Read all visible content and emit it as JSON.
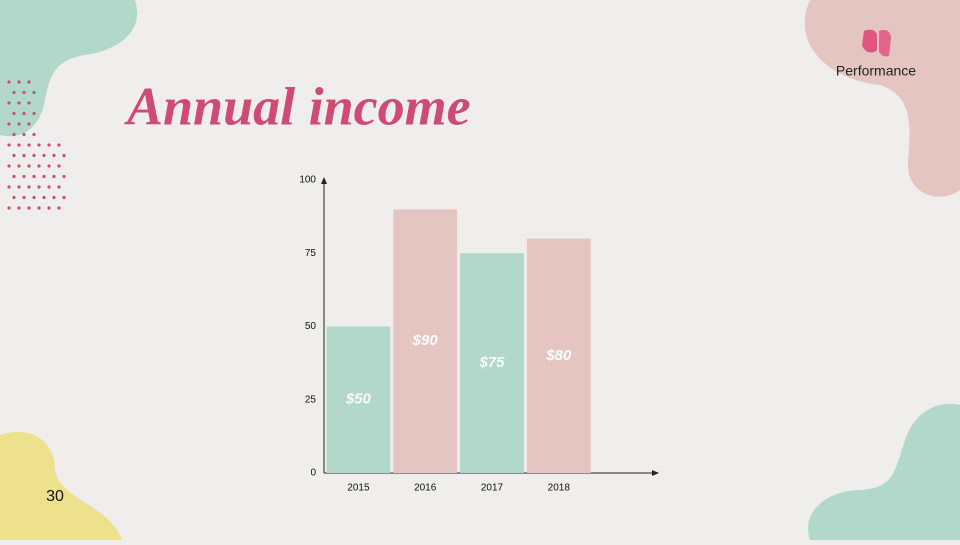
{
  "header": {
    "brand": "Performance",
    "page_number": "30"
  },
  "chart_data": {
    "type": "bar",
    "title": "Annual income",
    "categories": [
      "2015",
      "2016",
      "2017",
      "2018"
    ],
    "values": [
      50,
      90,
      75,
      80
    ],
    "value_labels": [
      "$50",
      "$90",
      "$75",
      "$80"
    ],
    "colors": [
      "#b2d8cb",
      "#e5c5c1",
      "#b2d8cb",
      "#e5c5c1"
    ],
    "ylim": [
      0,
      100
    ],
    "yticks": [
      0,
      25,
      50,
      75,
      100
    ],
    "grid": false
  }
}
